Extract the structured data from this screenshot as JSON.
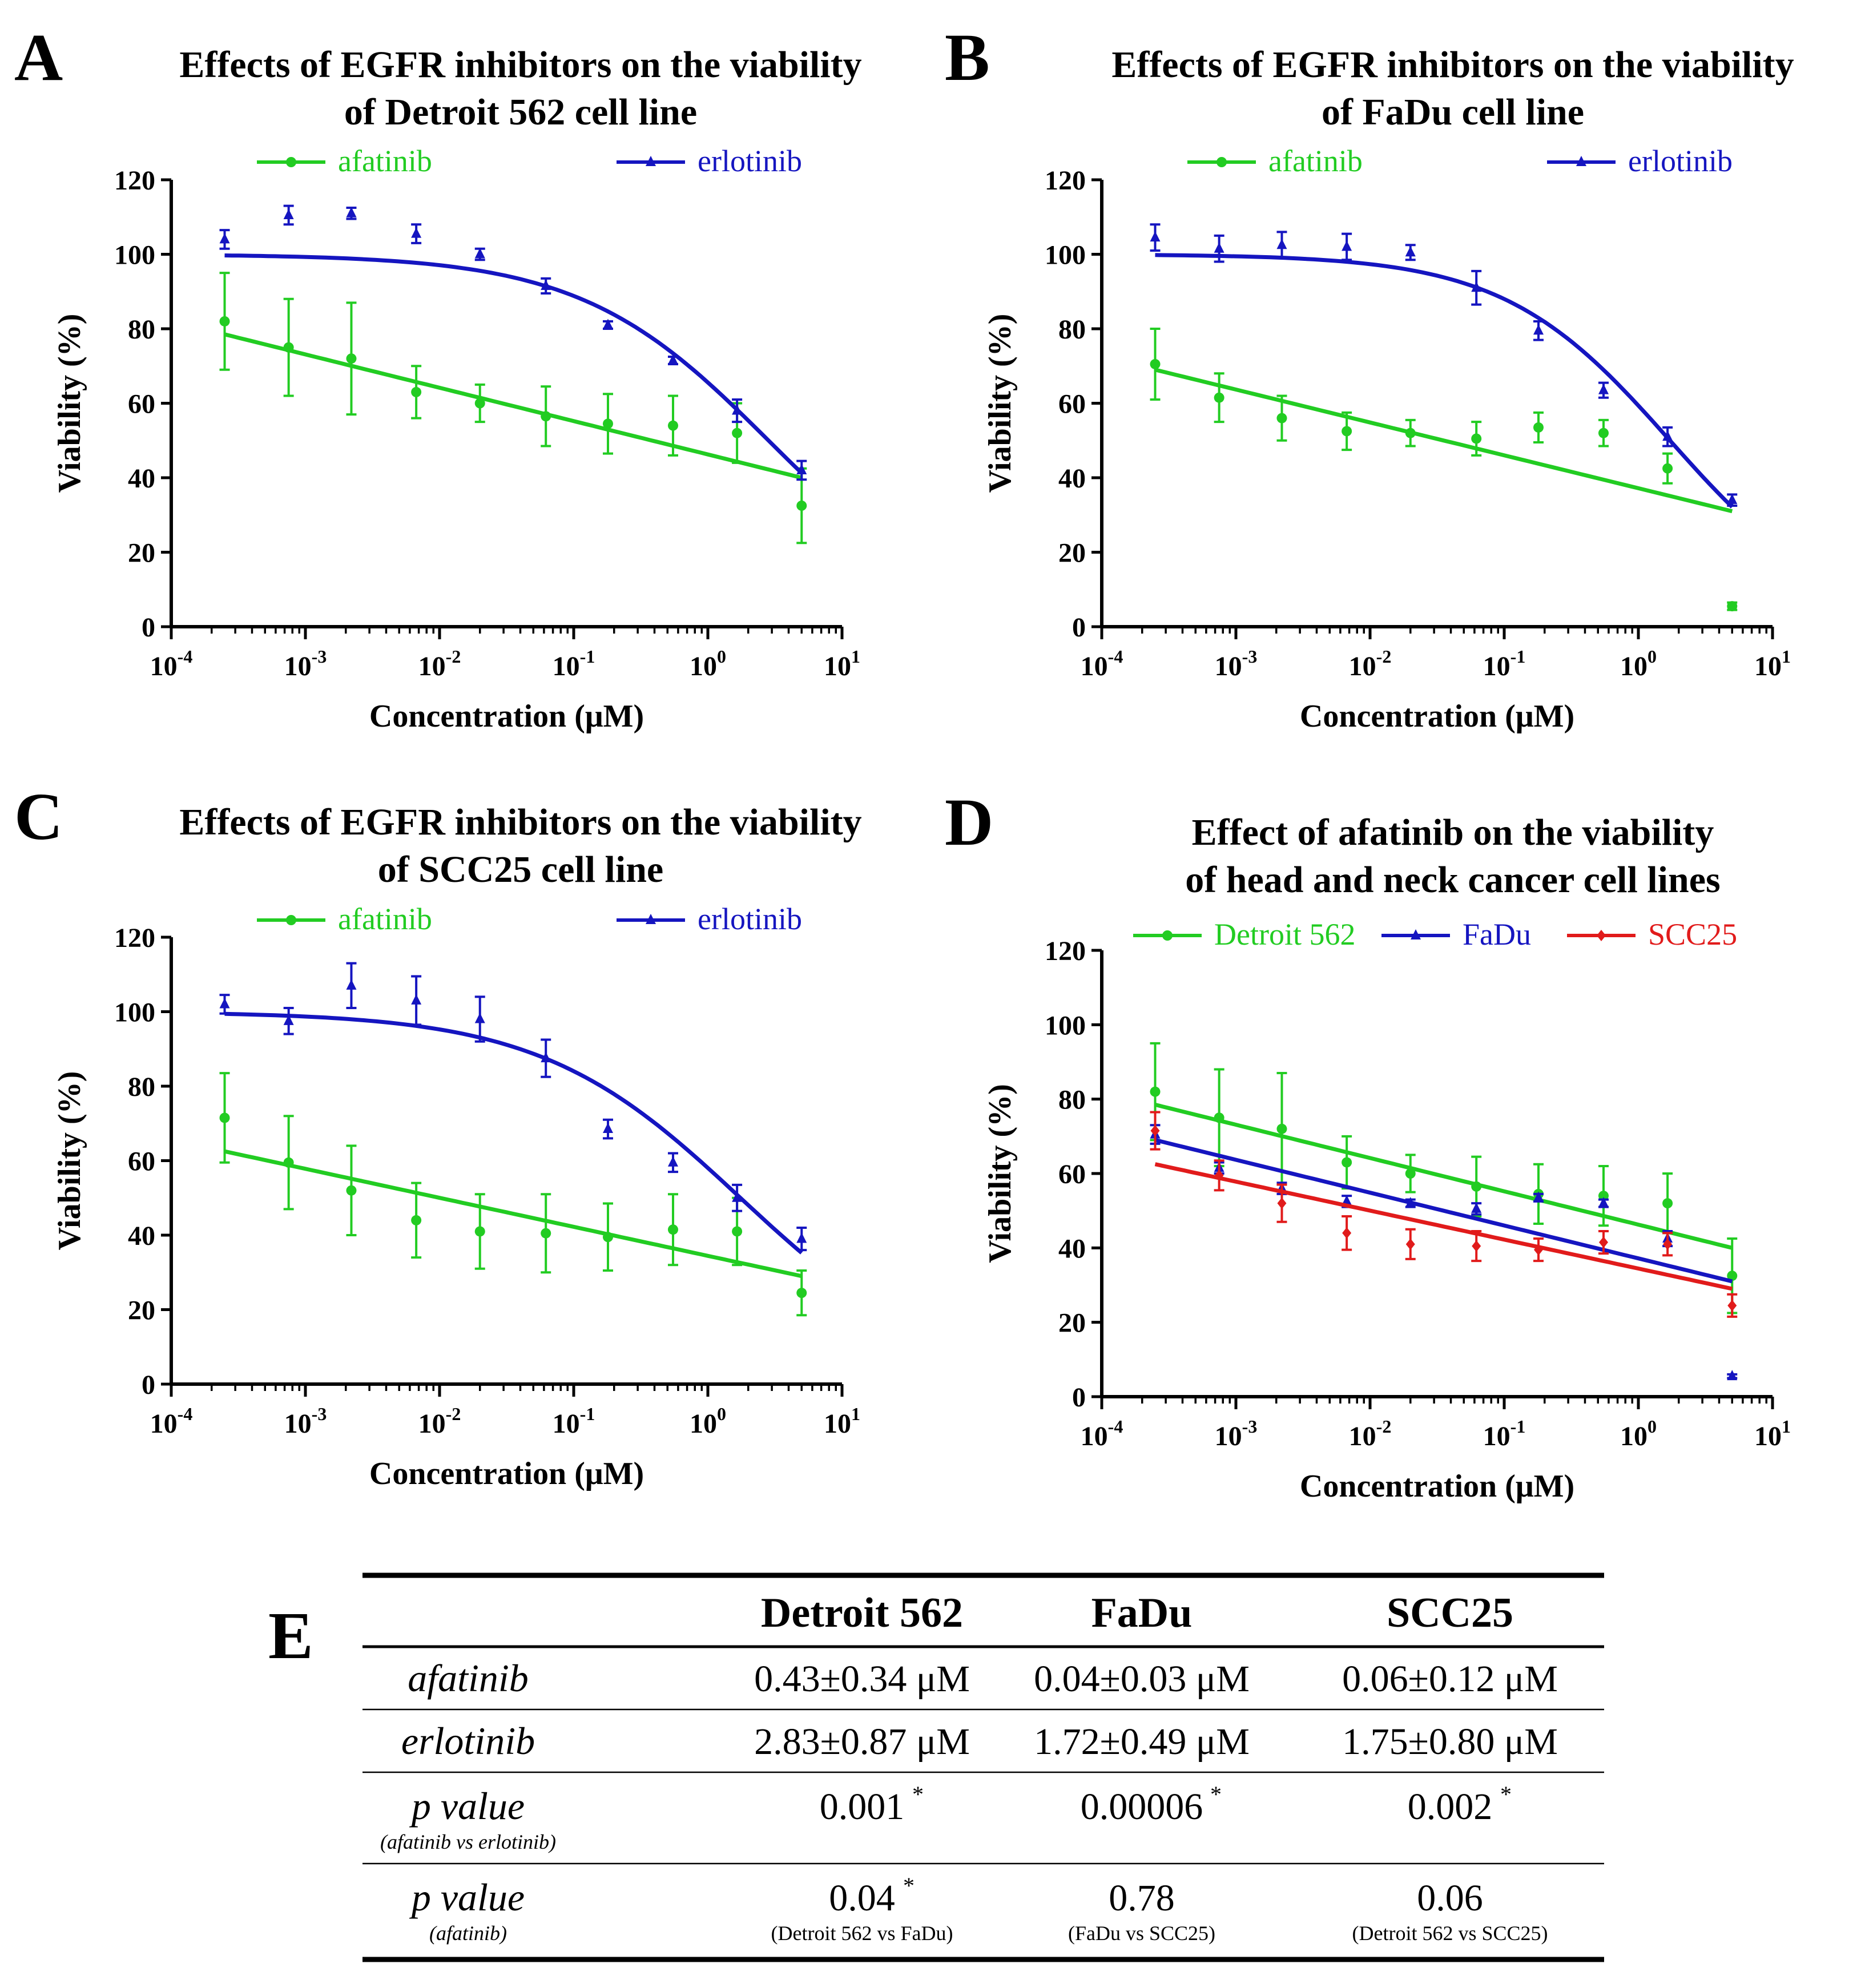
{
  "colors": {
    "afatinib": "#22cc22",
    "erlotinib": "#1515c0",
    "detroit": "#22cc22",
    "fadu": "#1515c0",
    "scc25": "#e11b1b",
    "axis": "#000000"
  },
  "chart_data": [
    {
      "id": "A",
      "type": "scatter",
      "letter": "A",
      "title": [
        "Effects of EGFR inhibitors on the viability",
        "of Detroit 562 cell line"
      ],
      "xlabel": "Concentration  (μM)",
      "ylabel": "Viability (%)",
      "xscale": "log",
      "xlim": [
        0.0001,
        10
      ],
      "ylim": [
        0,
        120
      ],
      "yticks": [
        0,
        20,
        40,
        60,
        80,
        100,
        120
      ],
      "xticks": [
        {
          "base": "10",
          "exp": "-4"
        },
        {
          "base": "10",
          "exp": "-3"
        },
        {
          "base": "10",
          "exp": "-2"
        },
        {
          "base": "10",
          "exp": "-1"
        },
        {
          "base": "10",
          "exp": "0"
        },
        {
          "base": "10",
          "exp": "1"
        }
      ],
      "x": [
        0.00025,
        0.00075,
        0.0022,
        0.0067,
        0.02,
        0.062,
        0.18,
        0.55,
        1.65,
        5.0
      ],
      "series": [
        {
          "name": "afatinib",
          "color": "#22cc22",
          "marker": "circle",
          "values": [
            82,
            75,
            72,
            63,
            60,
            56.5,
            54.5,
            54,
            52,
            32.5
          ],
          "errors": [
            13,
            13,
            15,
            7,
            5,
            8,
            8,
            8,
            8,
            10
          ],
          "fit": {
            "type": "linear-log",
            "start": 78.5,
            "end": 40
          }
        },
        {
          "name": "erlotinib",
          "color": "#1515c0",
          "marker": "triangle",
          "values": [
            104,
            110.5,
            111,
            105.5,
            100,
            91.5,
            81,
            71.5,
            58,
            42
          ],
          "errors": [
            2.5,
            2.5,
            1.5,
            2.5,
            1.5,
            2,
            1,
            1,
            3,
            2.5
          ],
          "fit": {
            "type": "sigmoid",
            "top": 100,
            "bottom": 0,
            "ic50": 2.83,
            "hill": 0.62
          }
        }
      ]
    },
    {
      "id": "B",
      "type": "scatter",
      "letter": "B",
      "title": [
        "Effects of EGFR inhibitors on the viability",
        "of FaDu cell line"
      ],
      "xlabel": "Concentration  (μM)",
      "ylabel": "Viability (%)",
      "xscale": "log",
      "xlim": [
        0.0001,
        10
      ],
      "ylim": [
        0,
        120
      ],
      "yticks": [
        0,
        20,
        40,
        60,
        80,
        100,
        120
      ],
      "xticks": [
        {
          "base": "10",
          "exp": "-4"
        },
        {
          "base": "10",
          "exp": "-3"
        },
        {
          "base": "10",
          "exp": "-2"
        },
        {
          "base": "10",
          "exp": "-1"
        },
        {
          "base": "10",
          "exp": "0"
        },
        {
          "base": "10",
          "exp": "1"
        }
      ],
      "x": [
        0.00025,
        0.00075,
        0.0022,
        0.0067,
        0.02,
        0.062,
        0.18,
        0.55,
        1.65,
        5.0
      ],
      "series": [
        {
          "name": "afatinib",
          "color": "#22cc22",
          "marker": "circle",
          "values": [
            70.5,
            61.5,
            56,
            52.5,
            52,
            50.5,
            53.5,
            52,
            42.5,
            5.5
          ],
          "errors": [
            9.5,
            6.5,
            6,
            5,
            3.5,
            4.5,
            4,
            3.5,
            4,
            1
          ],
          "fit": {
            "type": "linear-log",
            "start": 69,
            "end": 31
          }
        },
        {
          "name": "erlotinib",
          "color": "#1515c0",
          "marker": "triangle",
          "values": [
            104.5,
            101.5,
            102.5,
            102,
            100.5,
            91,
            79.5,
            63.5,
            51,
            34
          ],
          "errors": [
            3.5,
            3.5,
            3.5,
            3.5,
            2,
            4.5,
            2.5,
            2,
            2.5,
            1.5
          ],
          "fit": {
            "type": "sigmoid",
            "top": 100,
            "bottom": 0,
            "ic50": 1.72,
            "hill": 0.7
          }
        }
      ]
    },
    {
      "id": "C",
      "type": "scatter",
      "letter": "C",
      "title": [
        "Effects of EGFR inhibitors on the viability",
        "of SCC25 cell line"
      ],
      "xlabel": "Concentration  (μM)",
      "ylabel": "Viability (%)",
      "xscale": "log",
      "xlim": [
        0.0001,
        10
      ],
      "ylim": [
        0,
        120
      ],
      "yticks": [
        0,
        20,
        40,
        60,
        80,
        100,
        120
      ],
      "xticks": [
        {
          "base": "10",
          "exp": "-4"
        },
        {
          "base": "10",
          "exp": "-3"
        },
        {
          "base": "10",
          "exp": "-2"
        },
        {
          "base": "10",
          "exp": "-1"
        },
        {
          "base": "10",
          "exp": "0"
        },
        {
          "base": "10",
          "exp": "1"
        }
      ],
      "x": [
        0.00025,
        0.00075,
        0.0022,
        0.0067,
        0.02,
        0.062,
        0.18,
        0.55,
        1.65,
        5.0
      ],
      "series": [
        {
          "name": "afatinib",
          "color": "#22cc22",
          "marker": "circle",
          "values": [
            71.5,
            59.5,
            52,
            44,
            41,
            40.5,
            39.5,
            41.5,
            41,
            24.5
          ],
          "errors": [
            12,
            12.5,
            12,
            10,
            10,
            10.5,
            9,
            9.5,
            9,
            6
          ],
          "fit": {
            "type": "linear-log",
            "start": 62.5,
            "end": 29
          }
        },
        {
          "name": "erlotinib",
          "color": "#1515c0",
          "marker": "triangle",
          "values": [
            102,
            97.5,
            107,
            103,
            98,
            87.5,
            68.5,
            59.5,
            50,
            39
          ],
          "errors": [
            2.5,
            3.5,
            6,
            6.5,
            6,
            5,
            2.5,
            2.5,
            3.5,
            3
          ],
          "fit": {
            "type": "sigmoid",
            "top": 100,
            "bottom": 0,
            "ic50": 1.75,
            "hill": 0.58
          }
        }
      ]
    },
    {
      "id": "D",
      "type": "scatter",
      "letter": "D",
      "title": [
        "Effect of afatinib on the viability",
        "of head and neck cancer cell lines"
      ],
      "xlabel": "Concentration  (μM)",
      "ylabel": "Viability (%)",
      "xscale": "log",
      "xlim": [
        0.0001,
        10
      ],
      "ylim": [
        0,
        120
      ],
      "yticks": [
        0,
        20,
        40,
        60,
        80,
        100,
        120
      ],
      "xticks": [
        {
          "base": "10",
          "exp": "-4"
        },
        {
          "base": "10",
          "exp": "-3"
        },
        {
          "base": "10",
          "exp": "-2"
        },
        {
          "base": "10",
          "exp": "-1"
        },
        {
          "base": "10",
          "exp": "0"
        },
        {
          "base": "10",
          "exp": "1"
        }
      ],
      "x": [
        0.00025,
        0.00075,
        0.0022,
        0.0067,
        0.02,
        0.062,
        0.18,
        0.55,
        1.65,
        5.0
      ],
      "series": [
        {
          "name": "Detroit 562",
          "color": "#22cc22",
          "marker": "circle",
          "values": [
            82,
            75,
            72,
            63,
            60,
            56.5,
            54.5,
            54,
            52,
            32.5
          ],
          "errors": [
            13,
            13,
            15,
            7,
            5,
            8,
            8,
            8,
            8,
            10
          ],
          "fit": {
            "type": "linear-log",
            "start": 78.5,
            "end": 40
          }
        },
        {
          "name": "FaDu",
          "color": "#1515c0",
          "marker": "triangle",
          "values": [
            70.5,
            61.5,
            56,
            52.5,
            52,
            50.5,
            53.5,
            52,
            42.5,
            5.5
          ],
          "errors": [
            2.5,
            1.5,
            1.5,
            1.5,
            1,
            1.5,
            1,
            1,
            2,
            0.5
          ],
          "fit": {
            "type": "linear-log",
            "start": 69,
            "end": 31
          }
        },
        {
          "name": "SCC25",
          "color": "#e11b1b",
          "marker": "diamond",
          "values": [
            71.5,
            59.5,
            52,
            44,
            41,
            40.5,
            39.5,
            41.5,
            41,
            24.5
          ],
          "errors": [
            5,
            4,
            5,
            4.5,
            4,
            4,
            3,
            3,
            3,
            3
          ],
          "fit": {
            "type": "linear-log",
            "start": 62.5,
            "end": 29
          }
        }
      ]
    },
    {
      "id": "E",
      "type": "table",
      "letter": "E",
      "columns": [
        "",
        "Detroit 562",
        "FaDu",
        "SCC25"
      ],
      "rows": [
        {
          "label": "afatinib",
          "sublabel": "",
          "cells": [
            {
              "value": "0.43±0.34 μM",
              "star": "",
              "note": ""
            },
            {
              "value": "0.04±0.03 μM",
              "star": "",
              "note": ""
            },
            {
              "value": "0.06±0.12 μM",
              "star": "",
              "note": ""
            }
          ]
        },
        {
          "label": "erlotinib",
          "sublabel": "",
          "cells": [
            {
              "value": "2.83±0.87 μM",
              "star": "",
              "note": ""
            },
            {
              "value": "1.72±0.49 μM",
              "star": "",
              "note": ""
            },
            {
              "value": "1.75±0.80 μM",
              "star": "",
              "note": ""
            }
          ]
        },
        {
          "label": "p value",
          "sublabel": "(afatinib vs erlotinib)",
          "cells": [
            {
              "value": "0.001",
              "star": "*",
              "note": ""
            },
            {
              "value": "0.00006",
              "star": "*",
              "note": ""
            },
            {
              "value": "0.002",
              "star": "*",
              "note": ""
            }
          ]
        },
        {
          "label": "p value",
          "sublabel": "(afatinib)",
          "cells": [
            {
              "value": "0.04",
              "star": "*",
              "note": "(Detroit 562 vs FaDu)"
            },
            {
              "value": "0.78",
              "star": "",
              "note": "(FaDu vs SCC25)"
            },
            {
              "value": "0.06",
              "star": "",
              "note": "(Detroit 562 vs SCC25)"
            }
          ]
        }
      ]
    }
  ]
}
